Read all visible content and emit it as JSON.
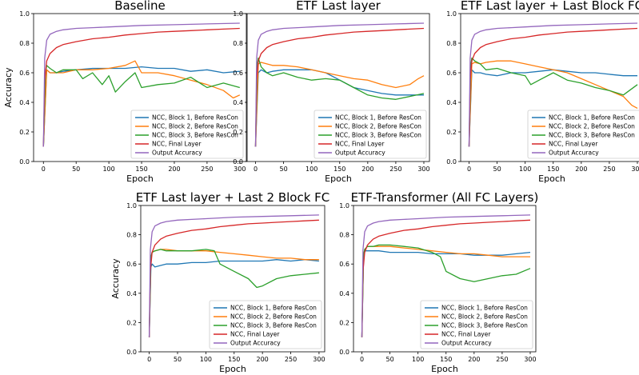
{
  "series_colors": [
    "#1f77b4",
    "#ff7f0e",
    "#2ca02c",
    "#d62728",
    "#9467bd"
  ],
  "chart_data": [
    {
      "type": "line",
      "title": "Baseline",
      "xlabel": "Epoch",
      "ylabel": "Accuracy",
      "xlim": [
        -15,
        310
      ],
      "ylim": [
        0.0,
        1.0
      ],
      "xticks": [
        "0",
        "50",
        "100",
        "150",
        "200",
        "250",
        "300"
      ],
      "yticks": [
        "0.0",
        "0.2",
        "0.4",
        "0.6",
        "0.8",
        "1.0"
      ],
      "legend_position": "lower-right",
      "series": [
        {
          "name": "NCC, Block 1, Before ResCon",
          "x": [
            0,
            5,
            10,
            20,
            30,
            50,
            75,
            100,
            125,
            150,
            175,
            200,
            225,
            250,
            275,
            300
          ],
          "y": [
            0.1,
            0.62,
            0.6,
            0.6,
            0.61,
            0.62,
            0.63,
            0.63,
            0.63,
            0.64,
            0.63,
            0.63,
            0.61,
            0.62,
            0.6,
            0.61
          ]
        },
        {
          "name": "NCC, Block 2, Before ResCon",
          "x": [
            0,
            5,
            10,
            20,
            30,
            50,
            75,
            100,
            125,
            140,
            150,
            175,
            200,
            225,
            250,
            275,
            290,
            300
          ],
          "y": [
            0.1,
            0.62,
            0.6,
            0.6,
            0.6,
            0.62,
            0.62,
            0.63,
            0.65,
            0.68,
            0.6,
            0.6,
            0.58,
            0.55,
            0.52,
            0.48,
            0.43,
            0.45
          ]
        },
        {
          "name": "NCC, Block 3, Before ResCon",
          "x": [
            0,
            3,
            5,
            10,
            20,
            30,
            50,
            60,
            75,
            90,
            100,
            110,
            125,
            140,
            150,
            175,
            200,
            225,
            250,
            275,
            300
          ],
          "y": [
            0.1,
            0.6,
            0.65,
            0.63,
            0.6,
            0.62,
            0.62,
            0.56,
            0.6,
            0.52,
            0.58,
            0.47,
            0.54,
            0.6,
            0.5,
            0.52,
            0.53,
            0.57,
            0.5,
            0.53,
            0.5
          ]
        },
        {
          "name": "NCC, Final Layer",
          "x": [
            0,
            2,
            5,
            10,
            20,
            30,
            50,
            75,
            100,
            125,
            150,
            175,
            200,
            225,
            250,
            275,
            300
          ],
          "y": [
            0.1,
            0.55,
            0.68,
            0.73,
            0.77,
            0.79,
            0.81,
            0.83,
            0.84,
            0.855,
            0.865,
            0.875,
            0.88,
            0.885,
            0.89,
            0.895,
            0.9
          ]
        },
        {
          "name": "Output Accuracy",
          "x": [
            0,
            2,
            5,
            10,
            20,
            30,
            50,
            75,
            100,
            150,
            200,
            250,
            300
          ],
          "y": [
            0.1,
            0.7,
            0.82,
            0.86,
            0.88,
            0.89,
            0.9,
            0.905,
            0.91,
            0.92,
            0.925,
            0.93,
            0.935
          ]
        }
      ]
    },
    {
      "type": "line",
      "title": "ETF Last layer",
      "xlabel": "Epoch",
      "ylabel": "",
      "xlim": [
        -15,
        310
      ],
      "ylim": [
        0.0,
        1.0
      ],
      "xticks": [
        "0",
        "50",
        "100",
        "150",
        "200",
        "250",
        "300"
      ],
      "yticks": [
        "0.0",
        "0.2",
        "0.4",
        "0.6",
        "0.8",
        "1.0"
      ],
      "legend_position": "lower-right",
      "series": [
        {
          "name": "NCC, Block 1, Before ResCon",
          "x": [
            0,
            5,
            10,
            20,
            30,
            50,
            75,
            100,
            125,
            150,
            175,
            200,
            225,
            250,
            275,
            300
          ],
          "y": [
            0.1,
            0.6,
            0.62,
            0.6,
            0.61,
            0.62,
            0.62,
            0.62,
            0.6,
            0.55,
            0.5,
            0.48,
            0.46,
            0.45,
            0.45,
            0.45
          ]
        },
        {
          "name": "NCC, Block 2, Before ResCon",
          "x": [
            0,
            5,
            10,
            20,
            30,
            50,
            75,
            100,
            125,
            150,
            175,
            200,
            225,
            250,
            275,
            290,
            300
          ],
          "y": [
            0.1,
            0.66,
            0.67,
            0.66,
            0.65,
            0.65,
            0.64,
            0.62,
            0.6,
            0.58,
            0.56,
            0.55,
            0.52,
            0.5,
            0.52,
            0.56,
            0.58
          ]
        },
        {
          "name": "NCC, Block 3, Before ResCon",
          "x": [
            0,
            3,
            5,
            10,
            20,
            30,
            50,
            75,
            100,
            125,
            150,
            175,
            200,
            225,
            250,
            275,
            300
          ],
          "y": [
            0.1,
            0.65,
            0.7,
            0.64,
            0.6,
            0.58,
            0.6,
            0.57,
            0.55,
            0.56,
            0.55,
            0.5,
            0.45,
            0.43,
            0.42,
            0.44,
            0.46
          ]
        },
        {
          "name": "NCC, Final Layer",
          "x": [
            0,
            2,
            5,
            10,
            20,
            30,
            50,
            75,
            100,
            125,
            150,
            175,
            200,
            225,
            250,
            275,
            300
          ],
          "y": [
            0.1,
            0.55,
            0.68,
            0.73,
            0.77,
            0.79,
            0.81,
            0.83,
            0.84,
            0.855,
            0.865,
            0.875,
            0.88,
            0.885,
            0.89,
            0.895,
            0.9
          ]
        },
        {
          "name": "Output Accuracy",
          "x": [
            0,
            2,
            5,
            10,
            20,
            30,
            50,
            75,
            100,
            150,
            200,
            250,
            300
          ],
          "y": [
            0.1,
            0.7,
            0.82,
            0.86,
            0.88,
            0.89,
            0.9,
            0.905,
            0.91,
            0.92,
            0.925,
            0.93,
            0.935
          ]
        }
      ]
    },
    {
      "type": "line",
      "title": "ETF Last layer + Last Block FC",
      "xlabel": "Epoch",
      "ylabel": "",
      "xlim": [
        -15,
        310
      ],
      "ylim": [
        0.0,
        1.0
      ],
      "xticks": [
        "0",
        "50",
        "100",
        "150",
        "200",
        "250",
        "300"
      ],
      "yticks": [
        "0.0",
        "0.2",
        "0.4",
        "0.6",
        "0.8",
        "1.0"
      ],
      "legend_position": "lower-right",
      "series": [
        {
          "name": "NCC, Block 1, Before ResCon",
          "x": [
            0,
            5,
            10,
            20,
            30,
            50,
            75,
            100,
            125,
            150,
            175,
            200,
            225,
            250,
            275,
            300
          ],
          "y": [
            0.1,
            0.62,
            0.6,
            0.6,
            0.59,
            0.58,
            0.6,
            0.6,
            0.61,
            0.62,
            0.61,
            0.6,
            0.6,
            0.59,
            0.58,
            0.58
          ]
        },
        {
          "name": "NCC, Block 2, Before ResCon",
          "x": [
            0,
            5,
            10,
            20,
            30,
            50,
            75,
            100,
            125,
            150,
            175,
            200,
            225,
            250,
            275,
            290,
            300
          ],
          "y": [
            0.1,
            0.66,
            0.67,
            0.66,
            0.67,
            0.68,
            0.68,
            0.66,
            0.64,
            0.62,
            0.6,
            0.56,
            0.52,
            0.48,
            0.44,
            0.38,
            0.36
          ]
        },
        {
          "name": "NCC, Block 3, Before ResCon",
          "x": [
            0,
            3,
            5,
            10,
            20,
            30,
            50,
            75,
            100,
            110,
            125,
            150,
            175,
            200,
            225,
            250,
            275,
            300
          ],
          "y": [
            0.1,
            0.65,
            0.7,
            0.68,
            0.66,
            0.62,
            0.63,
            0.6,
            0.58,
            0.52,
            0.55,
            0.6,
            0.55,
            0.53,
            0.5,
            0.48,
            0.45,
            0.52
          ]
        },
        {
          "name": "NCC, Final Layer",
          "x": [
            0,
            2,
            5,
            10,
            20,
            30,
            50,
            75,
            100,
            125,
            150,
            175,
            200,
            225,
            250,
            275,
            300
          ],
          "y": [
            0.1,
            0.55,
            0.68,
            0.73,
            0.77,
            0.79,
            0.81,
            0.83,
            0.84,
            0.855,
            0.865,
            0.875,
            0.88,
            0.885,
            0.89,
            0.895,
            0.9
          ]
        },
        {
          "name": "Output Accuracy",
          "x": [
            0,
            2,
            5,
            10,
            20,
            30,
            50,
            75,
            100,
            150,
            200,
            250,
            300
          ],
          "y": [
            0.1,
            0.7,
            0.82,
            0.86,
            0.88,
            0.89,
            0.9,
            0.905,
            0.91,
            0.92,
            0.925,
            0.93,
            0.935
          ]
        }
      ]
    },
    {
      "type": "line",
      "title": "ETF Last layer + Last 2 Block FC",
      "xlabel": "Epoch",
      "ylabel": "Accuracy",
      "xlim": [
        -15,
        310
      ],
      "ylim": [
        0.0,
        1.0
      ],
      "xticks": [
        "0",
        "50",
        "100",
        "150",
        "200",
        "250",
        "300"
      ],
      "yticks": [
        "0.0",
        "0.2",
        "0.4",
        "0.6",
        "0.8",
        "1.0"
      ],
      "legend_position": "lower-right",
      "series": [
        {
          "name": "NCC, Block 1, Before ResCon",
          "x": [
            0,
            3,
            5,
            10,
            20,
            30,
            50,
            75,
            100,
            125,
            150,
            175,
            200,
            225,
            250,
            275,
            300
          ],
          "y": [
            0.1,
            0.58,
            0.6,
            0.58,
            0.59,
            0.6,
            0.6,
            0.61,
            0.61,
            0.62,
            0.62,
            0.62,
            0.62,
            0.63,
            0.62,
            0.63,
            0.62
          ]
        },
        {
          "name": "NCC, Block 2, Before ResCon",
          "x": [
            0,
            3,
            5,
            10,
            20,
            30,
            50,
            75,
            100,
            125,
            150,
            175,
            200,
            225,
            250,
            275,
            300
          ],
          "y": [
            0.1,
            0.64,
            0.68,
            0.69,
            0.7,
            0.7,
            0.69,
            0.69,
            0.69,
            0.68,
            0.67,
            0.66,
            0.65,
            0.64,
            0.64,
            0.63,
            0.63
          ]
        },
        {
          "name": "NCC, Block 3, Before ResCon",
          "x": [
            0,
            3,
            5,
            10,
            20,
            30,
            50,
            75,
            100,
            115,
            125,
            150,
            175,
            190,
            200,
            225,
            250,
            275,
            300
          ],
          "y": [
            0.1,
            0.65,
            0.68,
            0.69,
            0.7,
            0.69,
            0.69,
            0.69,
            0.7,
            0.69,
            0.6,
            0.55,
            0.5,
            0.44,
            0.45,
            0.5,
            0.52,
            0.53,
            0.54
          ]
        },
        {
          "name": "NCC, Final Layer",
          "x": [
            0,
            2,
            5,
            10,
            20,
            30,
            50,
            75,
            100,
            125,
            150,
            175,
            200,
            225,
            250,
            275,
            300
          ],
          "y": [
            0.1,
            0.55,
            0.68,
            0.73,
            0.77,
            0.79,
            0.81,
            0.83,
            0.84,
            0.855,
            0.865,
            0.875,
            0.88,
            0.885,
            0.89,
            0.895,
            0.9
          ]
        },
        {
          "name": "Output Accuracy",
          "x": [
            0,
            2,
            5,
            10,
            20,
            30,
            50,
            75,
            100,
            150,
            200,
            250,
            300
          ],
          "y": [
            0.1,
            0.7,
            0.82,
            0.86,
            0.88,
            0.89,
            0.9,
            0.905,
            0.91,
            0.92,
            0.925,
            0.93,
            0.935
          ]
        }
      ]
    },
    {
      "type": "line",
      "title": "ETF-Transformer (All FC Layers)",
      "xlabel": "Epoch",
      "ylabel": "",
      "xlim": [
        -15,
        310
      ],
      "ylim": [
        0.0,
        1.0
      ],
      "xticks": [
        "0",
        "50",
        "100",
        "150",
        "200",
        "250",
        "300"
      ],
      "yticks": [
        "0.0",
        "0.2",
        "0.4",
        "0.6",
        "0.8",
        "1.0"
      ],
      "legend_position": "lower-right",
      "series": [
        {
          "name": "NCC, Block 1, Before ResCon",
          "x": [
            0,
            3,
            5,
            10,
            20,
            30,
            50,
            75,
            100,
            125,
            150,
            175,
            200,
            225,
            250,
            275,
            300
          ],
          "y": [
            0.1,
            0.65,
            0.69,
            0.69,
            0.69,
            0.69,
            0.68,
            0.68,
            0.68,
            0.67,
            0.67,
            0.67,
            0.66,
            0.66,
            0.66,
            0.67,
            0.68
          ]
        },
        {
          "name": "NCC, Block 2, Before ResCon",
          "x": [
            0,
            3,
            5,
            10,
            20,
            30,
            50,
            75,
            100,
            125,
            150,
            175,
            200,
            225,
            250,
            275,
            300
          ],
          "y": [
            0.1,
            0.66,
            0.7,
            0.72,
            0.72,
            0.72,
            0.72,
            0.71,
            0.7,
            0.69,
            0.68,
            0.67,
            0.67,
            0.66,
            0.65,
            0.65,
            0.65
          ]
        },
        {
          "name": "NCC, Block 3, Before ResCon",
          "x": [
            0,
            3,
            5,
            10,
            20,
            30,
            50,
            75,
            100,
            125,
            140,
            150,
            175,
            200,
            225,
            250,
            275,
            300
          ],
          "y": [
            0.1,
            0.66,
            0.7,
            0.72,
            0.72,
            0.73,
            0.73,
            0.72,
            0.71,
            0.68,
            0.65,
            0.55,
            0.5,
            0.48,
            0.5,
            0.52,
            0.53,
            0.57
          ]
        },
        {
          "name": "NCC, Final Layer",
          "x": [
            0,
            2,
            5,
            10,
            20,
            30,
            50,
            75,
            100,
            125,
            150,
            175,
            200,
            225,
            250,
            275,
            300
          ],
          "y": [
            0.1,
            0.55,
            0.68,
            0.73,
            0.77,
            0.79,
            0.81,
            0.83,
            0.84,
            0.855,
            0.865,
            0.875,
            0.88,
            0.885,
            0.89,
            0.895,
            0.9
          ]
        },
        {
          "name": "Output Accuracy",
          "x": [
            0,
            2,
            5,
            10,
            20,
            30,
            50,
            75,
            100,
            150,
            200,
            250,
            300
          ],
          "y": [
            0.1,
            0.7,
            0.82,
            0.86,
            0.88,
            0.89,
            0.9,
            0.905,
            0.91,
            0.92,
            0.925,
            0.93,
            0.935
          ]
        }
      ]
    }
  ]
}
